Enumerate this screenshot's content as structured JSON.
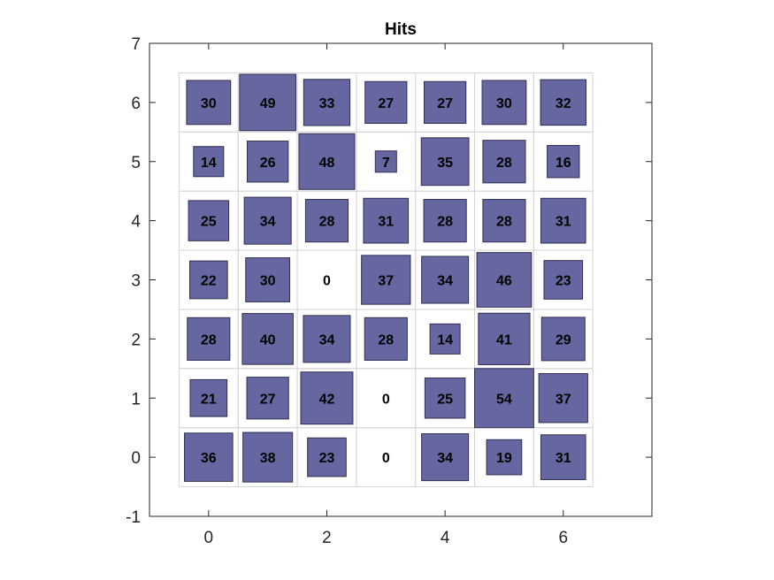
{
  "chart_data": {
    "type": "heatmap",
    "title": "Hits",
    "xlabel": "",
    "ylabel": "",
    "xlim": [
      -1,
      7.5
    ],
    "ylim": [
      -1,
      7
    ],
    "xticks": [
      0,
      2,
      4,
      6
    ],
    "yticks": [
      -1,
      0,
      1,
      2,
      3,
      4,
      5,
      6,
      7
    ],
    "grid_size": [
      7,
      7
    ],
    "max_hits": 54,
    "colors": {
      "square_fill": "#6667a0",
      "square_stroke": "#2f2f55",
      "grid_line": "#d6d6d6",
      "axis": "#262626"
    },
    "rows": [
      {
        "y": 6,
        "values": [
          30,
          49,
          33,
          27,
          27,
          30,
          32
        ]
      },
      {
        "y": 5,
        "values": [
          14,
          26,
          48,
          7,
          35,
          28,
          16
        ]
      },
      {
        "y": 4,
        "values": [
          25,
          34,
          28,
          31,
          28,
          28,
          31
        ]
      },
      {
        "y": 3,
        "values": [
          22,
          30,
          0,
          37,
          34,
          46,
          23
        ]
      },
      {
        "y": 2,
        "values": [
          28,
          40,
          34,
          28,
          14,
          41,
          29
        ]
      },
      {
        "y": 1,
        "values": [
          21,
          27,
          42,
          0,
          25,
          54,
          37
        ]
      },
      {
        "y": 0,
        "values": [
          36,
          38,
          23,
          0,
          34,
          19,
          31
        ]
      }
    ]
  }
}
